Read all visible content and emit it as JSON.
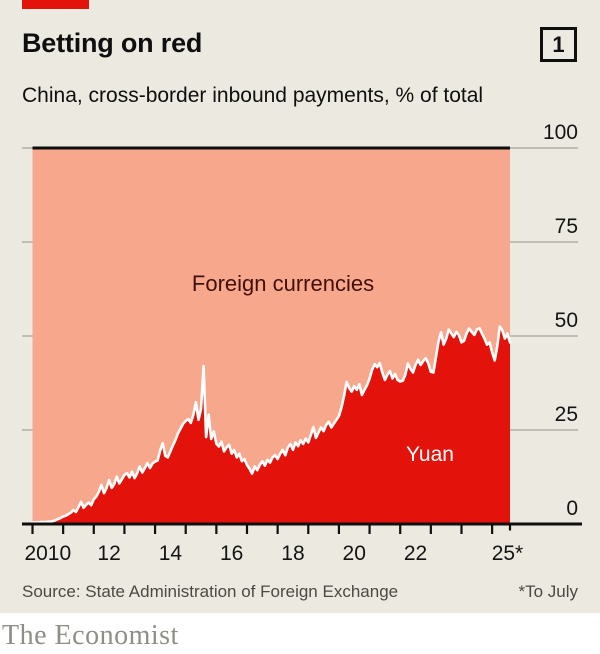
{
  "header": {
    "title": "Betting on red",
    "index_number": "1",
    "subtitle": "China, cross-border inbound payments, % of total"
  },
  "labels": {
    "foreign_currencies": "Foreign currencies",
    "yuan": "Yuan"
  },
  "footer": {
    "source": "Source: State Administration of Foreign Exchange",
    "footnote": "*To July",
    "wordmark": "The Economist"
  },
  "colors": {
    "background": "#ece9e0",
    "brand_red": "#e3120b",
    "yuan_area": "#e3120b",
    "foreign_area": "#f7a78b",
    "line": "#ffffff",
    "gridline": "#b3afa7",
    "axis": "#0f0f0f",
    "foreign_label_text": "#42100b"
  },
  "chart_data": {
    "type": "area",
    "title": "Betting on red",
    "subtitle": "China, cross-border inbound payments, % of total",
    "stacked_to": 100,
    "x_monthly_start": "2010-01",
    "x_monthly_end": "2025-07",
    "x_axis_years": [
      2010,
      2011,
      2012,
      2013,
      2014,
      2015,
      2016,
      2017,
      2018,
      2019,
      2020,
      2021,
      2022,
      2023,
      2024,
      2025
    ],
    "x_tick_labels": [
      {
        "label": "2010",
        "year": 2010
      },
      {
        "label": "12",
        "year": 2012
      },
      {
        "label": "14",
        "year": 2014
      },
      {
        "label": "16",
        "year": 2016
      },
      {
        "label": "18",
        "year": 2018
      },
      {
        "label": "20",
        "year": 2020
      },
      {
        "label": "22",
        "year": 2022
      },
      {
        "label": "25*",
        "year": 2025
      }
    ],
    "ylim": [
      0,
      100
    ],
    "y_ticks": [
      0,
      25,
      50,
      75,
      100
    ],
    "grid": true,
    "legend_position": "inside-area",
    "series": [
      {
        "name": "Yuan",
        "color": "#e3120b",
        "values": [
          0.4,
          0.4,
          0.5,
          0.5,
          0.5,
          0.6,
          0.6,
          0.8,
          1.0,
          1.3,
          1.6,
          2.0,
          2.2,
          2.6,
          3.0,
          3.7,
          3.2,
          4.5,
          5.9,
          4.3,
          5.1,
          5.7,
          5.0,
          6.6,
          7.3,
          8.6,
          10.4,
          8.2,
          9.6,
          11.7,
          9.6,
          10.6,
          12.6,
          10.8,
          11.9,
          13.0,
          13.5,
          12.4,
          13.9,
          12.2,
          13.5,
          15.3,
          13.7,
          14.9,
          16.2,
          14.9,
          16.1,
          16.6,
          16.9,
          19.6,
          21.5,
          18.1,
          17.7,
          19.3,
          20.9,
          22.4,
          24.1,
          25.4,
          26.7,
          27.4,
          27.9,
          26.9,
          29.1,
          32.4,
          27.7,
          30.6,
          42.0,
          23.1,
          29.1,
          22.6,
          24.6,
          21.3,
          20.6,
          21.9,
          19.3,
          20.4,
          21.1,
          18.7,
          19.7,
          17.7,
          18.7,
          16.7,
          17.3,
          15.7,
          14.7,
          13.4,
          15.3,
          14.3,
          15.7,
          16.7,
          15.5,
          17.1,
          16.3,
          17.7,
          18.3,
          17.3,
          18.7,
          19.7,
          18.3,
          20.3,
          21.3,
          19.7,
          21.7,
          20.7,
          22.3,
          21.3,
          22.7,
          21.7,
          23.7,
          25.8,
          22.9,
          24.3,
          25.7,
          24.7,
          26.3,
          27.2,
          25.7,
          26.7,
          27.7,
          28.7,
          31.0,
          34.0,
          37.8,
          36.2,
          35.2,
          36.7,
          35.7,
          37.2,
          34.3,
          35.7,
          36.9,
          38.7,
          41.0,
          42.5,
          41.7,
          42.8,
          40.3,
          38.3,
          39.7,
          40.7,
          38.7,
          39.9,
          38.3,
          37.9,
          38.1,
          39.7,
          42.7,
          41.3,
          40.3,
          42.3,
          43.7,
          42.3,
          43.3,
          44.1,
          42.7,
          40.5,
          40.3,
          44.3,
          48.5,
          51.0,
          47.7,
          49.3,
          51.7,
          50.7,
          49.7,
          51.1,
          50.3,
          48.3,
          48.7,
          50.7,
          52.0,
          51.1,
          50.3,
          51.7,
          52.1,
          50.7,
          49.3,
          47.7,
          48.3,
          45.7,
          43.5,
          47.1,
          52.5,
          51.6,
          49.3,
          50.7,
          48.3
        ]
      },
      {
        "name": "Foreign currencies",
        "color": "#f7a78b",
        "note": "remainder of stack up to 100%"
      }
    ]
  }
}
